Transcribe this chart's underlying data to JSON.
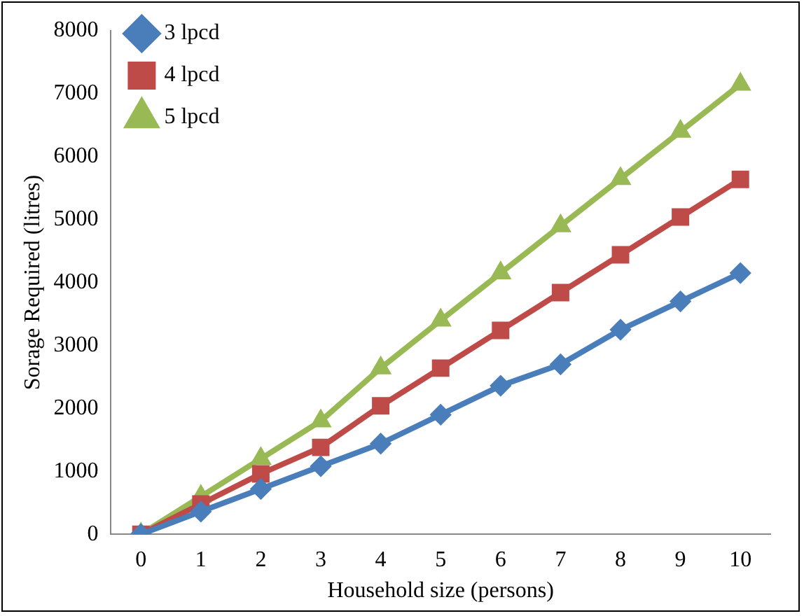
{
  "chart_data": {
    "type": "line",
    "xlabel": "Household size (persons)",
    "ylabel": "Sorage Required (litres)",
    "categories": [
      "0",
      "1",
      "2",
      "3",
      "4",
      "5",
      "6",
      "7",
      "8",
      "9",
      "10"
    ],
    "series": [
      {
        "name": "3 lpcd",
        "color": "#4a7ebb",
        "marker": "diamond",
        "values": [
          0,
          360,
          720,
          1080,
          1440,
          1900,
          2360,
          2700,
          3250,
          3700,
          4150
        ]
      },
      {
        "name": "4 lpcd",
        "color": "#be4b48",
        "marker": "square",
        "values": [
          0,
          480,
          960,
          1380,
          2040,
          2640,
          3240,
          3840,
          4440,
          5040,
          5640
        ]
      },
      {
        "name": "5 lpcd",
        "color": "#98b954",
        "marker": "triangle",
        "values": [
          0,
          600,
          1200,
          1800,
          2640,
          3400,
          4150,
          4900,
          5650,
          6400,
          7150
        ]
      }
    ],
    "ylim": [
      0,
      8000
    ],
    "yticks": [
      0,
      1000,
      2000,
      3000,
      4000,
      5000,
      6000,
      7000,
      8000
    ],
    "grid": false,
    "legend": "top left"
  }
}
